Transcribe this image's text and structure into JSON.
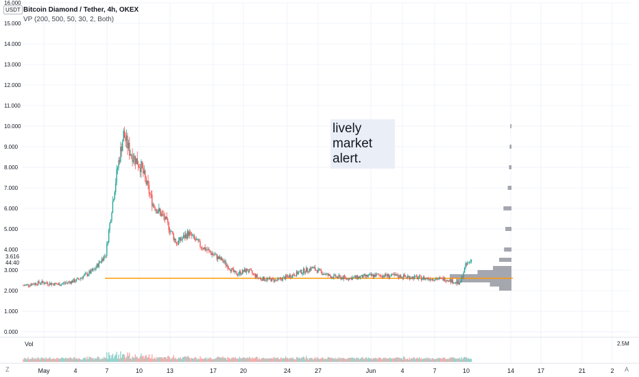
{
  "header": {
    "title": "Bitcoin Diamond / Tether, 4h, OKEX",
    "indicator": "VP (200, 500, 50, 30, 2, Both)",
    "unit": "USDT"
  },
  "note": {
    "lines": [
      "lively",
      "market",
      "alert."
    ]
  },
  "volume": {
    "label": "Vol",
    "max_label": "2.5M"
  },
  "price_tag": {
    "price": "3.616",
    "countdown": "44:40"
  },
  "footer": {
    "left_icon": "Z",
    "right_icon": "A"
  },
  "colors": {
    "up": "#26a69a",
    "down": "#ef5350",
    "hline": "#ff9800",
    "vp": "#9598a1",
    "grid": "#f0f3fa",
    "text": "#131722"
  },
  "chart_data": {
    "type": "candlestick",
    "symbol": "Bitcoin Diamond / Tether",
    "interval": "4h",
    "exchange": "OKEX",
    "ylim": [
      0,
      16
    ],
    "y_ticks": [
      "0.000",
      "1.000",
      "2.000",
      "3.000",
      "4.000",
      "5.000",
      "6.000",
      "7.000",
      "8.000",
      "9.000",
      "10.000",
      "11.000",
      "12.000",
      "13.000",
      "14.000",
      "15.000",
      "16.000"
    ],
    "x_ticks": [
      "May",
      "4",
      "7",
      "10",
      "13",
      "17",
      "20",
      "24",
      "27",
      "Jun",
      "4",
      "7",
      "10",
      "14",
      "17",
      "21",
      "2"
    ],
    "horizontal_line": 2.6,
    "last_price": 3.616,
    "price_path": [
      {
        "day": 0,
        "price": 2.25
      },
      {
        "day": 3,
        "price": 2.4
      },
      {
        "day": 6,
        "price": 2.3
      },
      {
        "day": 9,
        "price": 2.5
      },
      {
        "day": 12,
        "price": 3.0
      },
      {
        "day": 14,
        "price": 3.8
      },
      {
        "day": 15,
        "price": 6.0
      },
      {
        "day": 16,
        "price": 8.0
      },
      {
        "day": 17,
        "price": 9.6
      },
      {
        "day": 18,
        "price": 8.8
      },
      {
        "day": 20,
        "price": 8.0
      },
      {
        "day": 22,
        "price": 6.2
      },
      {
        "day": 24,
        "price": 5.5
      },
      {
        "day": 26,
        "price": 4.3
      },
      {
        "day": 28,
        "price": 4.8
      },
      {
        "day": 30,
        "price": 4.2
      },
      {
        "day": 32,
        "price": 3.8
      },
      {
        "day": 34,
        "price": 3.4
      },
      {
        "day": 36,
        "price": 2.8
      },
      {
        "day": 38,
        "price": 3.0
      },
      {
        "day": 40,
        "price": 2.6
      },
      {
        "day": 43,
        "price": 2.5
      },
      {
        "day": 46,
        "price": 2.8
      },
      {
        "day": 49,
        "price": 3.1
      },
      {
        "day": 52,
        "price": 2.7
      },
      {
        "day": 55,
        "price": 2.6
      },
      {
        "day": 60,
        "price": 2.75
      },
      {
        "day": 64,
        "price": 2.7
      },
      {
        "day": 68,
        "price": 2.6
      },
      {
        "day": 72,
        "price": 2.55
      },
      {
        "day": 74,
        "price": 2.3
      },
      {
        "day": 75,
        "price": 3.2
      },
      {
        "day": 76,
        "price": 3.5
      }
    ],
    "volume_profile": [
      {
        "price": 2.1,
        "rel": 0.2
      },
      {
        "price": 2.3,
        "rel": 0.35
      },
      {
        "price": 2.5,
        "rel": 0.9
      },
      {
        "price": 2.7,
        "rel": 1.0
      },
      {
        "price": 2.9,
        "rel": 0.55
      },
      {
        "price": 3.1,
        "rel": 0.3
      },
      {
        "price": 3.5,
        "rel": 0.2
      },
      {
        "price": 4.0,
        "rel": 0.12
      },
      {
        "price": 5.0,
        "rel": 0.1
      },
      {
        "price": 6.0,
        "rel": 0.13
      },
      {
        "price": 7.0,
        "rel": 0.06
      },
      {
        "price": 8.0,
        "rel": 0.04
      },
      {
        "price": 9.0,
        "rel": 0.03
      },
      {
        "price": 10.0,
        "rel": 0.02
      }
    ]
  }
}
